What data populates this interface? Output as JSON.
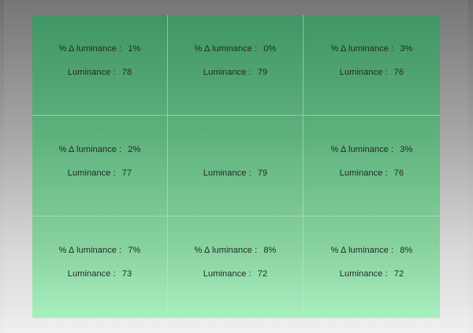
{
  "labels": {
    "delta": "% Δ luminance :",
    "luminance": "Luminance :"
  },
  "grid": [
    {
      "delta": "1%",
      "luminance": "78"
    },
    {
      "delta": "0%",
      "luminance": "79"
    },
    {
      "delta": "3%",
      "luminance": "76"
    },
    {
      "delta": "2%",
      "luminance": "77"
    },
    {
      "delta": null,
      "luminance": "79"
    },
    {
      "delta": "3%",
      "luminance": "76"
    },
    {
      "delta": "7%",
      "luminance": "73"
    },
    {
      "delta": "8%",
      "luminance": "72"
    },
    {
      "delta": "8%",
      "luminance": "72"
    }
  ],
  "colors": {
    "panel_top": "#409564",
    "panel_bottom": "#a8efbf",
    "backdrop_top": "#6e6e6e",
    "backdrop_bottom": "#ececec"
  }
}
